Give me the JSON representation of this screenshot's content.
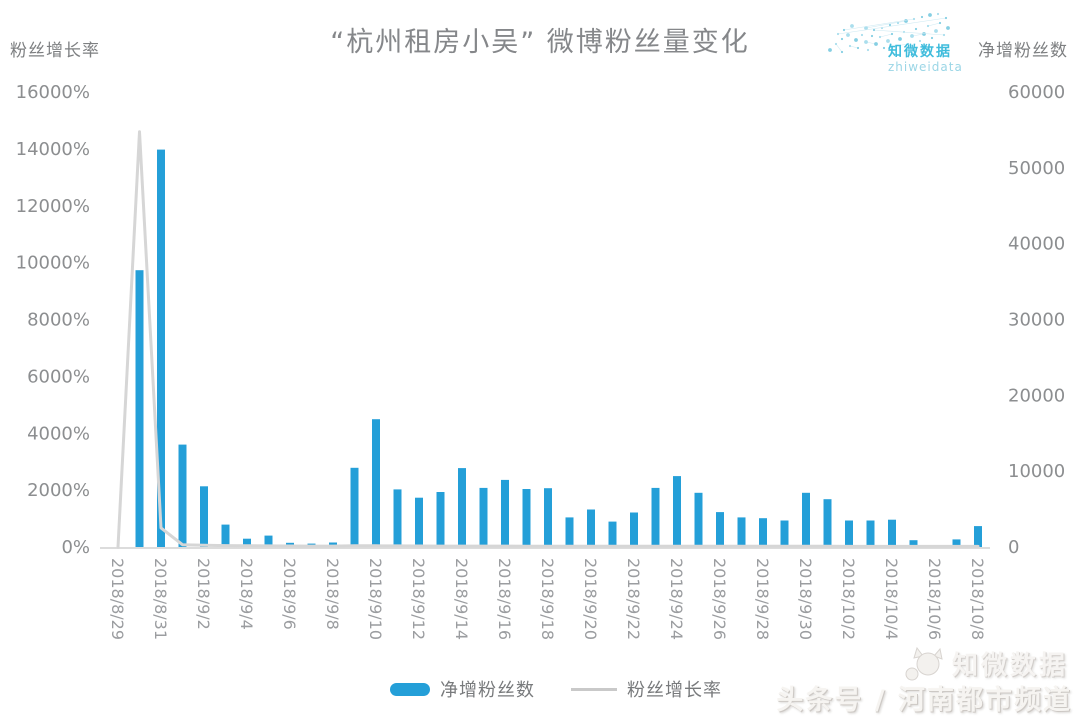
{
  "logo": {
    "name": "知微数据",
    "domain": "zhiweidata"
  },
  "legend": [
    {
      "label": "净增粉丝数",
      "type": "bar",
      "color": "#249fd8"
    },
    {
      "label": "粉丝增长率",
      "type": "line",
      "color": "#c9c9c9"
    }
  ],
  "watermarks": {
    "zhiwei": "知微数据",
    "channel": "头条号 / 河南都市频道"
  },
  "chart_data": {
    "type": "bar",
    "title": "“杭州租房小吴” 微博粉丝量变化",
    "grid": false,
    "legend_position": "bottom",
    "x": [
      "2018/8/29",
      "2018/8/30",
      "2018/8/31",
      "2018/9/1",
      "2018/9/2",
      "2018/9/3",
      "2018/9/4",
      "2018/9/5",
      "2018/9/6",
      "2018/9/7",
      "2018/9/8",
      "2018/9/9",
      "2018/9/10",
      "2018/9/11",
      "2018/9/12",
      "2018/9/13",
      "2018/9/14",
      "2018/9/15",
      "2018/9/16",
      "2018/9/17",
      "2018/9/18",
      "2018/9/19",
      "2018/9/20",
      "2018/9/21",
      "2018/9/22",
      "2018/9/23",
      "2018/9/24",
      "2018/9/25",
      "2018/9/26",
      "2018/9/27",
      "2018/9/28",
      "2018/9/29",
      "2018/9/30",
      "2018/10/1",
      "2018/10/2",
      "2018/10/3",
      "2018/10/4",
      "2018/10/5",
      "2018/10/6",
      "2018/10/7",
      "2018/10/8"
    ],
    "x_tick_every": 2,
    "x_tick_labels": [
      "2018/8/29",
      "2018/8/31",
      "2018/9/2",
      "2018/9/4",
      "2018/9/6",
      "2018/9/8",
      "2018/9/10",
      "2018/9/12",
      "2018/9/14",
      "2018/9/16",
      "2018/9/18",
      "2018/9/20",
      "2018/9/22",
      "2018/9/24",
      "2018/9/26",
      "2018/9/28",
      "2018/9/30",
      "2018/10/2",
      "2018/10/4",
      "2018/10/6",
      "2018/10/8"
    ],
    "left_axis": {
      "title": "粉丝增长率",
      "unit": "%",
      "min": 0,
      "max": 16000,
      "ticks": [
        "16000%",
        "14000%",
        "12000%",
        "10000%",
        "8000%",
        "6000%",
        "4000%",
        "2000%",
        "0%"
      ]
    },
    "right_axis": {
      "title": "净增粉丝数",
      "min": 0,
      "max": 60000,
      "ticks": [
        "60000",
        "50000",
        "40000",
        "30000",
        "20000",
        "10000",
        "0"
      ]
    },
    "series": [
      {
        "name": "净增粉丝数",
        "type": "bar",
        "axis": "right",
        "color": "#249fd8",
        "values": [
          0,
          36500,
          52400,
          13500,
          8000,
          2950,
          1100,
          1500,
          550,
          450,
          600,
          10450,
          16850,
          7600,
          6500,
          7250,
          10400,
          7800,
          8850,
          7650,
          7750,
          3900,
          4950,
          3350,
          4550,
          7800,
          9350,
          7150,
          4600,
          3900,
          3800,
          3500,
          7150,
          6300,
          3500,
          3500,
          3600,
          900,
          0,
          1000,
          2750
        ]
      },
      {
        "name": "粉丝增长率",
        "type": "line",
        "axis": "left",
        "color": "#d6d6d6",
        "values": [
          0,
          14600,
          670,
          80,
          60,
          50,
          45,
          40,
          35,
          32,
          30,
          45,
          42,
          38,
          35,
          33,
          32,
          30,
          30,
          28,
          28,
          26,
          26,
          25,
          25,
          25,
          26,
          25,
          24,
          24,
          23,
          23,
          24,
          23,
          22,
          22,
          22,
          20,
          20,
          20,
          20
        ]
      }
    ]
  }
}
